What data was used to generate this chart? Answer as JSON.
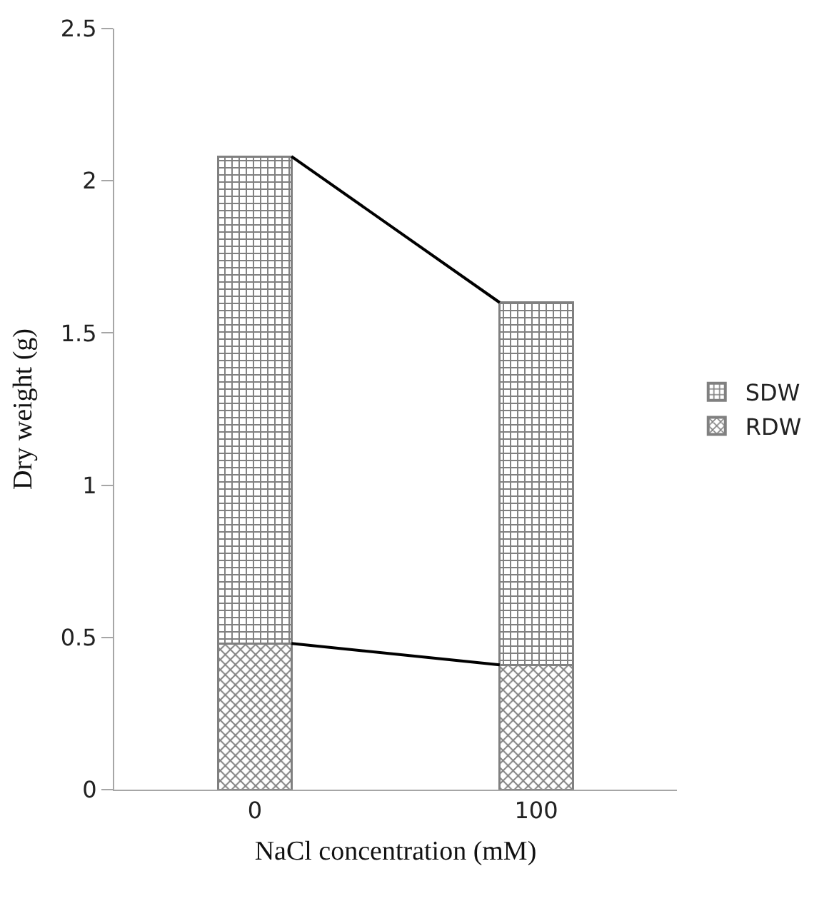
{
  "chart_data": {
    "type": "bar",
    "stacked": true,
    "xlabel": "NaCl concentration (mM)",
    "ylabel": "Dry weight (g)",
    "categories": [
      "0",
      "100"
    ],
    "series": [
      {
        "name": "RDW",
        "color": "#808080",
        "values": [
          0.48,
          0.41
        ]
      },
      {
        "name": "SDW",
        "color": "#808080",
        "values": [
          1.6,
          1.19
        ]
      }
    ],
    "ylim": [
      0,
      2.5
    ],
    "yticks": [
      0,
      0.5,
      1,
      1.5,
      2,
      2.5
    ],
    "grid": false,
    "legend": "right"
  }
}
